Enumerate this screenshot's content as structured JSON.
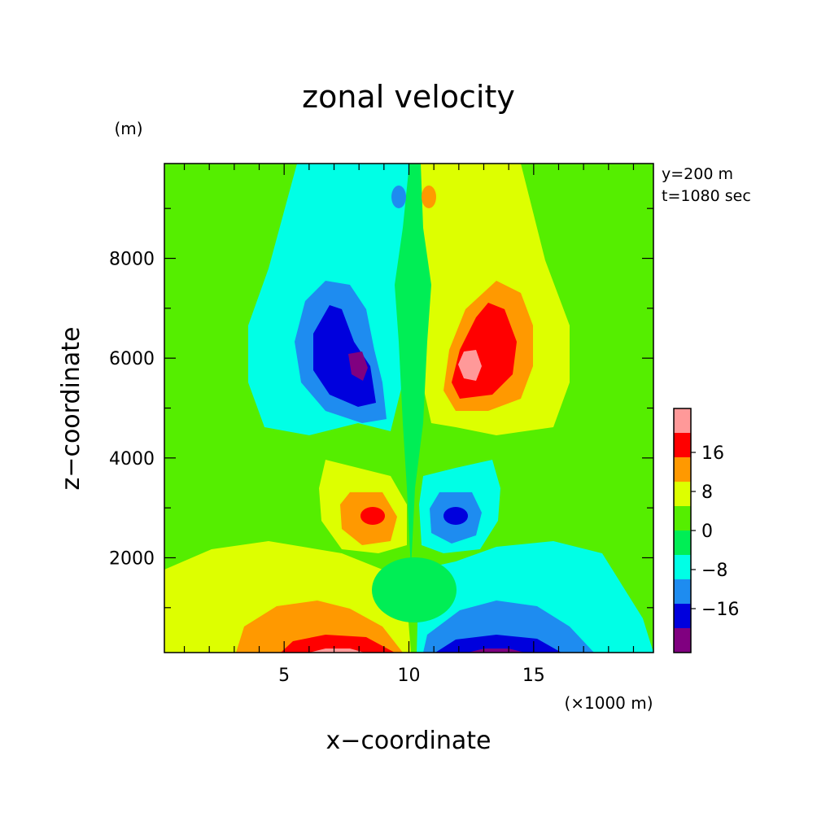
{
  "chart_data": {
    "type": "heatmap",
    "title": "zonal velocity",
    "xlabel": "x−coordinate",
    "ylabel": "z−coordinate",
    "x_unit_label": "(×1000 m)",
    "y_unit_label": "(m)",
    "annotations": [
      "y=200 m",
      "t=1080 sec"
    ],
    "xlim": [
      0.2,
      19.8
    ],
    "ylim": [
      100,
      9900
    ],
    "x_ticks": [
      "5",
      "10",
      "15"
    ],
    "y_ticks": [
      "2000",
      "4000",
      "6000",
      "8000"
    ],
    "colorbar": {
      "tick_labels": [
        "16",
        "8",
        "0",
        "−8",
        "−16"
      ],
      "levels": [
        -24,
        -20,
        -16,
        -12,
        -8,
        -4,
        0,
        4,
        8,
        12,
        16,
        20,
        24
      ],
      "colors": [
        "#800080",
        "#0000dd",
        "#1e8cf0",
        "#00ffe6",
        "#00ee55",
        "#55ee00",
        "#ddff00",
        "#ff9900",
        "#ff0000",
        "#ff9999"
      ]
    },
    "features": [
      {
        "x": 8.2,
        "z": 5900,
        "value": -22
      },
      {
        "x": 12.5,
        "z": 6000,
        "value": 18
      },
      {
        "x": 8.7,
        "z": 2800,
        "value": 14
      },
      {
        "x": 11.7,
        "z": 2800,
        "value": -14
      },
      {
        "x": 7.0,
        "z": 150,
        "value": 18
      },
      {
        "x": 13.3,
        "z": 150,
        "value": -22
      },
      {
        "x": 9.5,
        "z": 9300,
        "value": -10
      },
      {
        "x": 10.6,
        "z": 9300,
        "value": 10
      }
    ]
  }
}
